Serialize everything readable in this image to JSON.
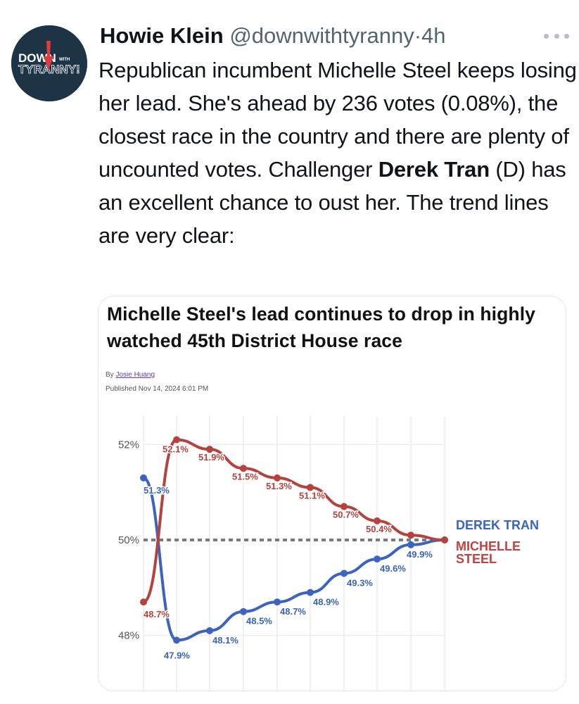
{
  "tweet": {
    "author_name": "Howie Klein",
    "author_handle": "@downwithtyranny",
    "separator": "·",
    "time": "4h",
    "avatar": {
      "line1": "DOWN",
      "with": "WITH",
      "line2": "TYRANNY!",
      "bg_color": "#1d3446",
      "accent": "#e23b3b"
    },
    "more_icon": "ellipsis-icon",
    "text_parts": [
      {
        "text": "Republican incumbent Michelle Steel keeps losing her lead. She's ahead by 236 votes (0.08%), the closest race in the country and there are plenty of uncounted votes. Challenger ",
        "bold": false
      },
      {
        "text": "Derek Tran",
        "bold": true
      },
      {
        "text": " (D) has an excellent chance to oust her. The trend lines are very clear:",
        "bold": false
      }
    ]
  },
  "article": {
    "headline": "Michelle Steel's lead continues to drop in highly watched 45th District House race",
    "by_prefix": "By",
    "author": "Josie Huang",
    "published": "Published Nov 14, 2024 6:01 PM"
  },
  "colors": {
    "tran_blue": "#3b64c1",
    "steel_red": "#b5423d",
    "grid": "#ececec",
    "dotted_line": "#7a7a7a"
  },
  "chart_data": {
    "type": "line",
    "title": "Michelle Steel's lead continues to drop in highly watched 45th District House race",
    "xlabel": "",
    "ylabel": "",
    "y_ticks": [
      "52%",
      "50%",
      "48%"
    ],
    "ylim": [
      47.5,
      52.5
    ],
    "x": [
      1,
      2,
      3,
      4,
      5,
      6,
      7,
      8,
      9,
      10
    ],
    "series": [
      {
        "name": "DEREK TRAN",
        "color": "#3b64c1",
        "values": [
          51.3,
          47.9,
          48.1,
          48.5,
          48.7,
          48.9,
          49.3,
          49.6,
          49.9,
          50.0
        ],
        "labels": [
          "51.3%",
          "47.9%",
          "48.1%",
          "48.5%",
          "48.7%",
          "48.9%",
          "49.3%",
          "49.6%",
          "49.9%",
          ""
        ]
      },
      {
        "name": "MICHELLE STEEL",
        "color": "#b5423d",
        "values": [
          48.7,
          52.1,
          51.9,
          51.5,
          51.3,
          51.1,
          50.7,
          50.4,
          50.1,
          50.0
        ],
        "labels": [
          "48.7%",
          "52.1%",
          "51.9%",
          "51.5%",
          "51.3%",
          "51.1%",
          "50.7%",
          "50.4%",
          "",
          ""
        ]
      }
    ],
    "reference_line": {
      "value": 50,
      "style": "dotted"
    },
    "grid": true,
    "legend": {
      "position": "right",
      "entries": [
        "DEREK TRAN",
        "MICHELLE STEEL"
      ]
    }
  },
  "legend": {
    "tran": "DEREK TRAN",
    "steel_line1": "MICHELLE",
    "steel_line2": "STEEL"
  }
}
